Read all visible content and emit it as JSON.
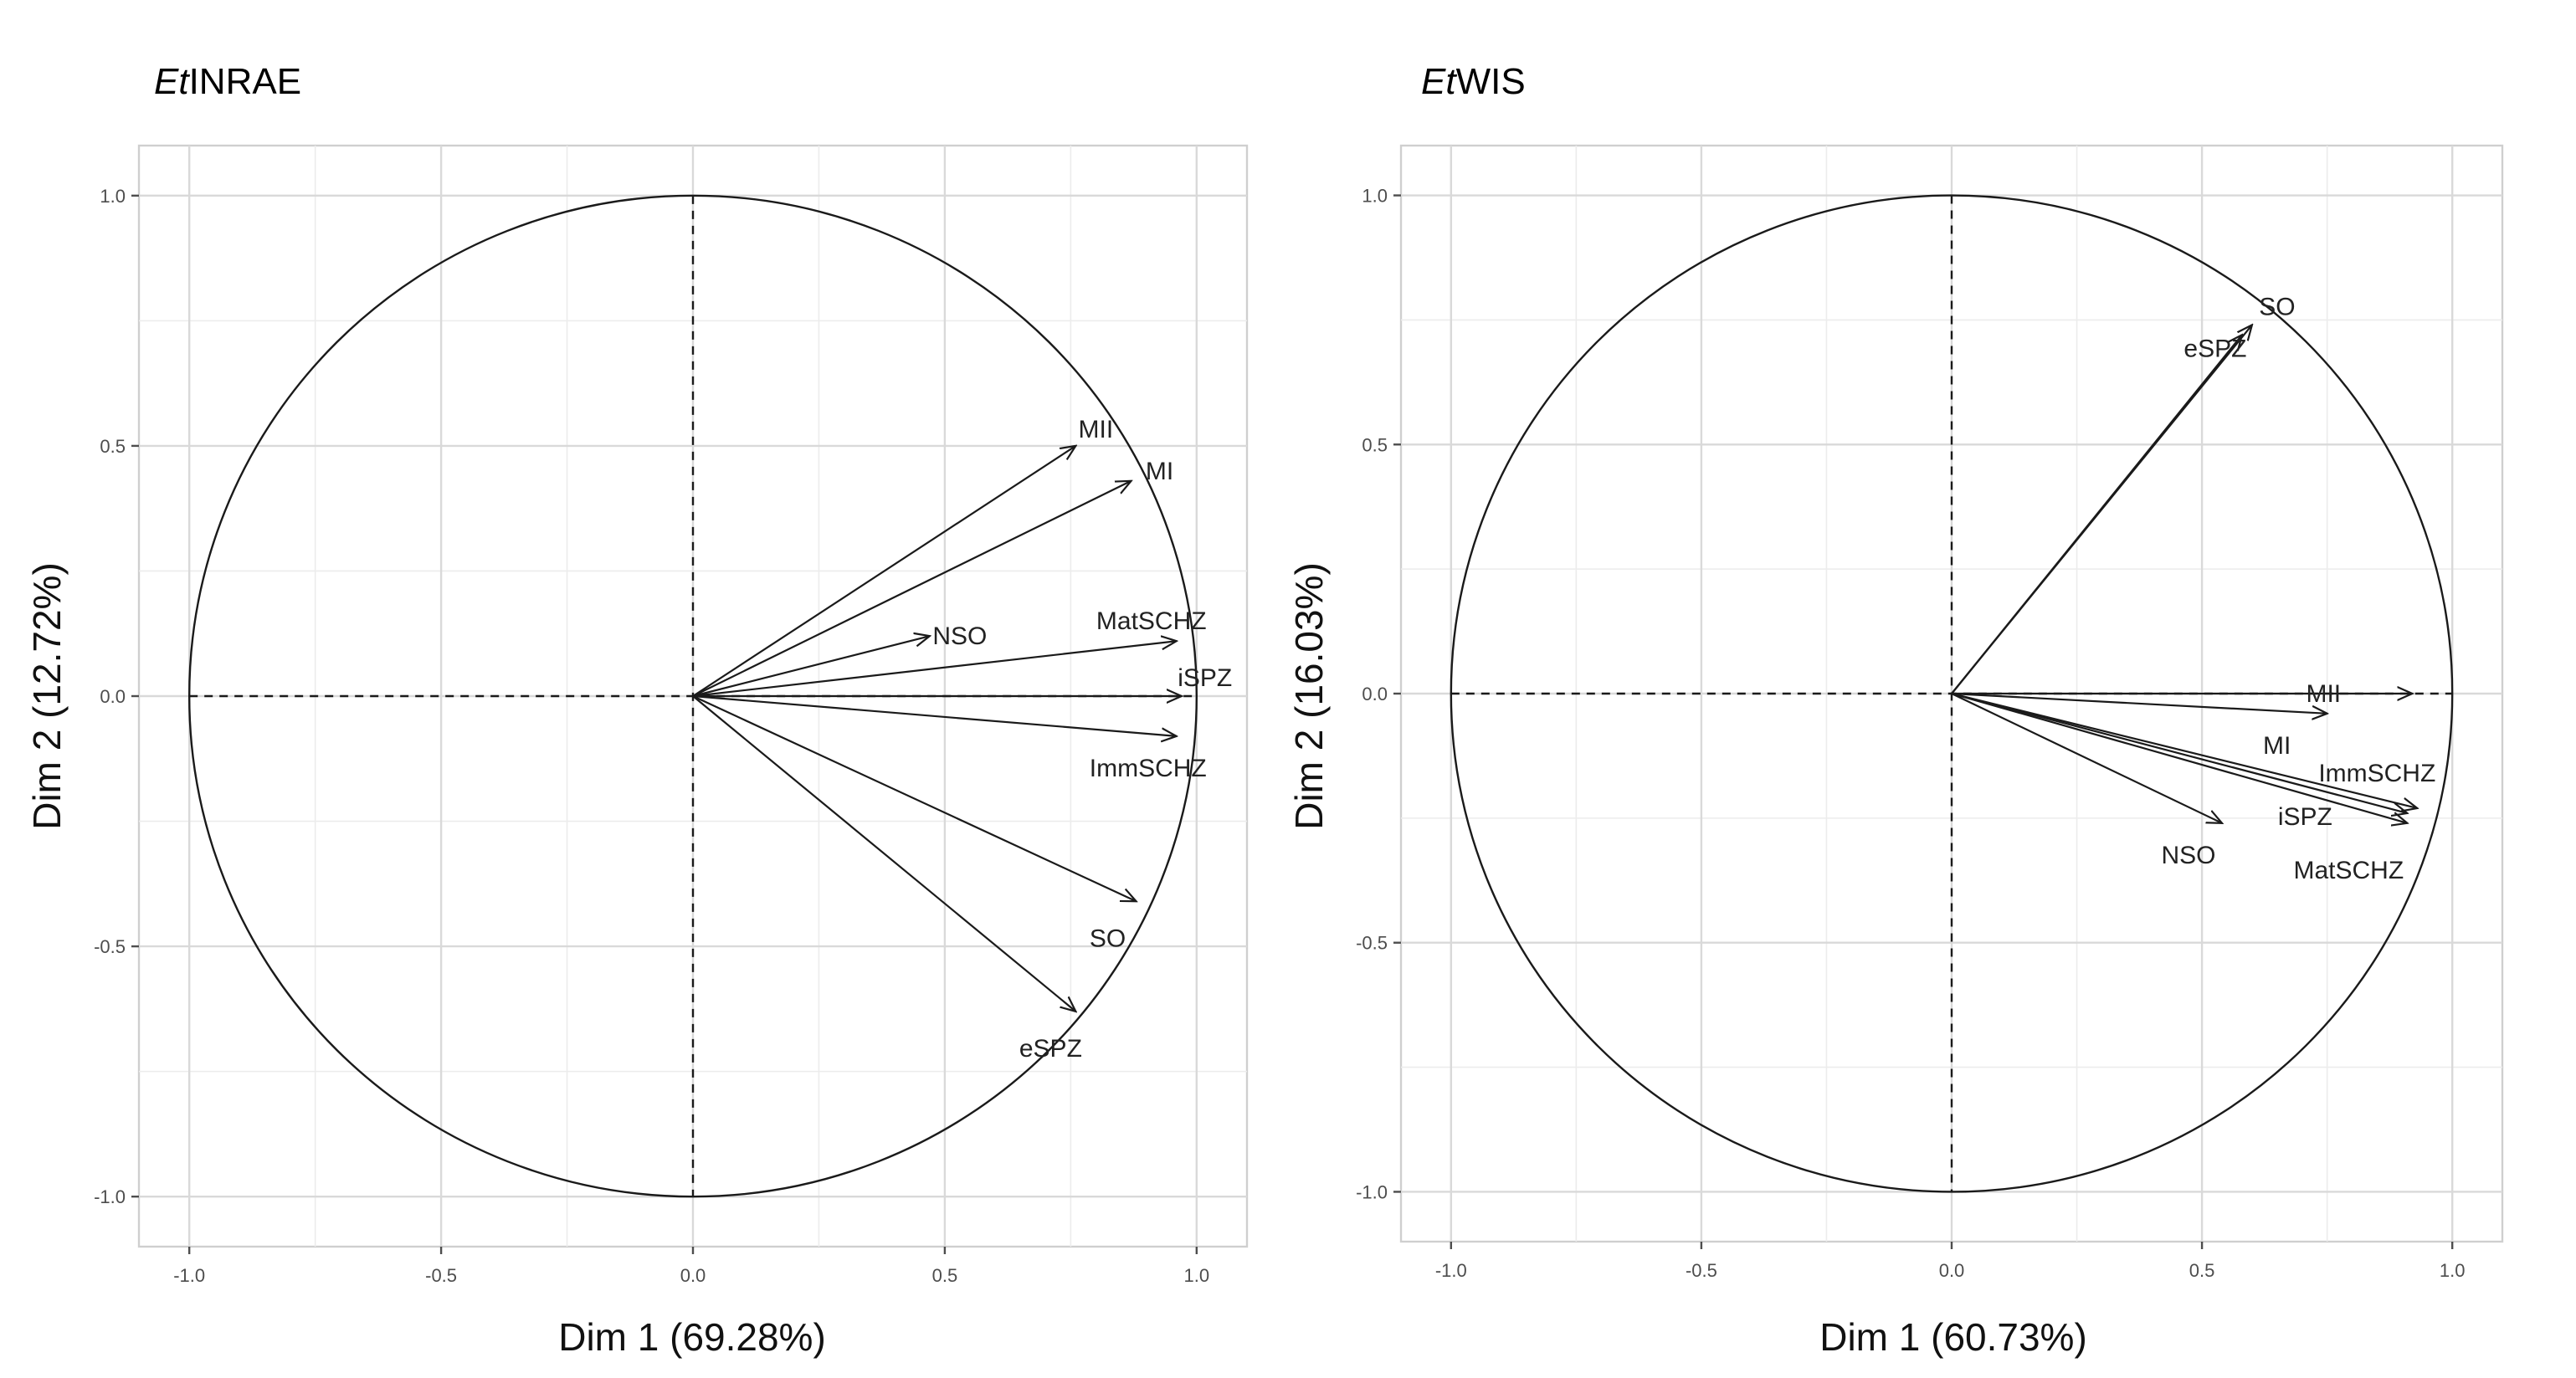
{
  "chart_data": [
    {
      "type": "scatter",
      "title": "EtINRAE",
      "title_parts": [
        {
          "text": "Et",
          "style": "italic"
        },
        {
          "text": "INRAE",
          "style": "normal"
        }
      ],
      "xlabel": "Dim 1 (69.28%)",
      "ylabel": "Dim 2 (12.72%)",
      "xlim": [
        -1.1,
        1.1
      ],
      "ylim": [
        -1.1,
        1.1
      ],
      "xticks": [
        -1.0,
        -0.5,
        0.0,
        0.5,
        1.0
      ],
      "yticks": [
        -1.0,
        -0.5,
        0.0,
        0.5,
        1.0
      ],
      "xtick_labels": [
        "-1.0",
        "-0.5",
        "0.0",
        "0.5",
        "1.0"
      ],
      "ytick_labels": [
        "-1.0",
        "-0.5",
        "0.0",
        "0.5",
        "1.0"
      ],
      "grid": true,
      "unit_circle": true,
      "variables": [
        {
          "name": "MII",
          "x": 0.76,
          "y": 0.5
        },
        {
          "name": "MI",
          "x": 0.87,
          "y": 0.43
        },
        {
          "name": "NSO",
          "x": 0.47,
          "y": 0.12
        },
        {
          "name": "MatSCHZ",
          "x": 0.96,
          "y": 0.11
        },
        {
          "name": "iSPZ",
          "x": 0.97,
          "y": 0.0
        },
        {
          "name": "ImmSCHZ",
          "x": 0.96,
          "y": -0.08
        },
        {
          "name": "SO",
          "x": 0.88,
          "y": -0.41
        },
        {
          "name": "eSPZ",
          "x": 0.76,
          "y": -0.63
        }
      ]
    },
    {
      "type": "scatter",
      "title": "EtWIS",
      "title_parts": [
        {
          "text": "Et",
          "style": "italic"
        },
        {
          "text": "WIS",
          "style": "normal"
        }
      ],
      "xlabel": "Dim 1 (60.73%)",
      "ylabel": "Dim 2 (16.03%)",
      "xlim": [
        -1.1,
        1.1
      ],
      "ylim": [
        -1.1,
        1.1
      ],
      "xticks": [
        -1.0,
        -0.5,
        0.0,
        0.5,
        1.0
      ],
      "yticks": [
        -1.0,
        -0.5,
        0.0,
        0.5,
        1.0
      ],
      "xtick_labels": [
        "-1.0",
        "-0.5",
        "0.0",
        "0.5",
        "1.0"
      ],
      "ytick_labels": [
        "-1.0",
        "-0.5",
        "0.0",
        "0.5",
        "1.0"
      ],
      "grid": true,
      "unit_circle": true,
      "variables": [
        {
          "name": "SO",
          "x": 0.6,
          "y": 0.74
        },
        {
          "name": "eSPZ",
          "x": 0.58,
          "y": 0.72
        },
        {
          "name": "MII",
          "x": 0.92,
          "y": 0.0
        },
        {
          "name": "MI",
          "x": 0.75,
          "y": -0.04
        },
        {
          "name": "ImmSCHZ",
          "x": 0.93,
          "y": -0.23
        },
        {
          "name": "iSPZ",
          "x": 0.91,
          "y": -0.24
        },
        {
          "name": "MatSCHZ",
          "x": 0.91,
          "y": -0.26
        },
        {
          "name": "NSO",
          "x": 0.54,
          "y": -0.26
        }
      ]
    }
  ]
}
